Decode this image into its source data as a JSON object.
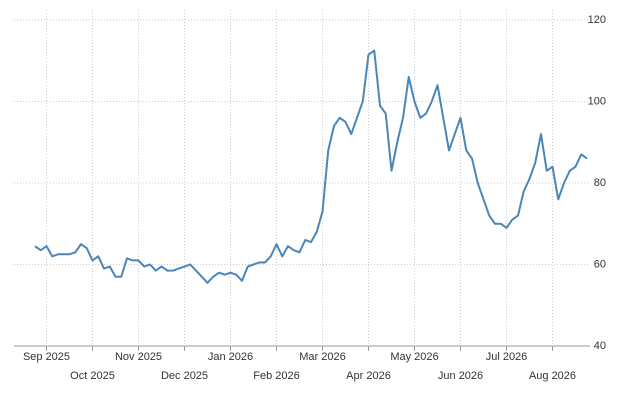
{
  "chart_data": {
    "type": "line",
    "categories": [
      null,
      null,
      "Sep 2025",
      null,
      null,
      null,
      null,
      null,
      null,
      null,
      "Oct 2025",
      null,
      null,
      null,
      null,
      null,
      null,
      null,
      "Nov 2025",
      null,
      null,
      null,
      null,
      null,
      null,
      null,
      "Dec 2025",
      null,
      null,
      null,
      null,
      null,
      null,
      null,
      "Jan 2026",
      null,
      null,
      null,
      null,
      null,
      null,
      null,
      "Feb 2026",
      null,
      null,
      null,
      null,
      null,
      null,
      null,
      "Mar 2026",
      null,
      null,
      null,
      null,
      null,
      null,
      null,
      "Apr 2026",
      null,
      null,
      null,
      null,
      null,
      null,
      null,
      "May 2026",
      null,
      null,
      null,
      null,
      null,
      null,
      null,
      "Jun 2026",
      null,
      null,
      null,
      null,
      null,
      null,
      null,
      "Jul 2026",
      null,
      null,
      null,
      null,
      null,
      null,
      null,
      "Aug 2026",
      null,
      null,
      null,
      null,
      null,
      null
    ],
    "values": [
      64.5,
      63.5,
      64.5,
      62,
      62.5,
      62.5,
      62.5,
      63,
      65,
      64,
      61,
      62,
      59,
      59.5,
      57,
      57,
      61.5,
      61,
      61,
      59.5,
      60,
      58.5,
      59.5,
      58.5,
      58.5,
      59,
      59.5,
      60,
      58.5,
      57,
      55.5,
      57,
      58,
      57.5,
      58,
      57.5,
      56,
      59.5,
      60,
      60.5,
      60.5,
      62,
      65,
      62,
      64.5,
      63.5,
      63,
      66,
      65.5,
      68,
      73,
      88,
      94,
      96,
      95,
      92,
      96,
      100,
      111.5,
      112.5,
      99,
      97,
      83,
      90,
      96,
      106,
      100,
      96,
      97,
      100,
      104,
      96,
      88,
      92,
      96,
      88,
      86,
      80,
      76,
      72,
      70,
      70,
      69,
      71,
      72,
      78,
      81,
      85,
      92,
      83,
      84,
      76,
      80,
      83,
      84,
      87,
      86
    ],
    "color": "#4a86b8",
    "ylim": [
      40,
      120
    ],
    "yticks": [
      40,
      60,
      80,
      100,
      120
    ],
    "grid": true
  }
}
